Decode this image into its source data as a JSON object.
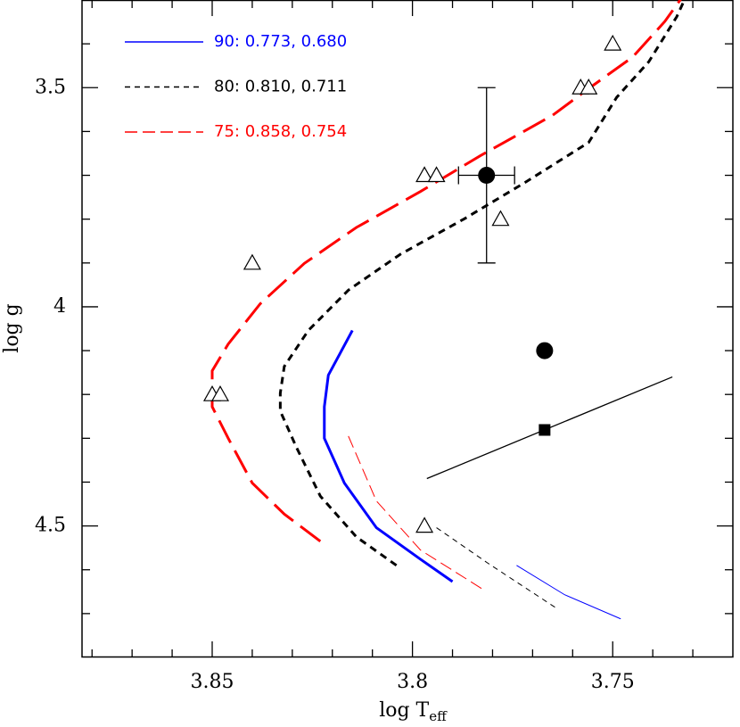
{
  "chart_data": {
    "type": "line",
    "xlabel": "log T",
    "xlabel_subscript": "eff",
    "ylabel": "log g",
    "xlim": [
      3.8825,
      3.72
    ],
    "ylim": [
      3.3,
      4.8
    ],
    "xticks": [
      3.85,
      3.8,
      3.75
    ],
    "yticks": [
      3.5,
      4,
      4.5
    ],
    "xminorticks": [
      3.88,
      3.87,
      3.86,
      3.84,
      3.83,
      3.82,
      3.81,
      3.79,
      3.78,
      3.77,
      3.76,
      3.74,
      3.73
    ],
    "yminorticks": [
      3.3,
      3.4,
      3.6,
      3.7,
      3.8,
      3.9,
      4.1,
      4.2,
      4.3,
      4.4,
      4.6,
      4.7
    ],
    "series": [
      {
        "name": "90: 0.773, 0.680",
        "color": "#0000ff",
        "kind": "line",
        "style": "solid",
        "width": 3,
        "x": [
          3.79,
          3.798,
          3.809,
          3.817,
          3.822,
          3.822,
          3.821,
          3.818,
          3.815
        ],
        "values": [
          4.627,
          4.576,
          4.504,
          4.402,
          4.3,
          4.228,
          4.156,
          4.105,
          4.054
        ]
      },
      {
        "name": "80: 0.810, 0.711",
        "color": "#000000",
        "kind": "line",
        "style": "short-dash",
        "width": 3,
        "x": [
          3.804,
          3.814,
          3.823,
          3.829,
          3.833,
          3.833,
          3.832,
          3.826,
          3.816,
          3.803,
          3.787,
          3.772,
          3.756,
          3.749,
          3.741,
          3.734,
          3.732
        ],
        "values": [
          4.59,
          4.525,
          4.432,
          4.32,
          4.238,
          4.197,
          4.136,
          4.054,
          3.962,
          3.88,
          3.799,
          3.717,
          3.625,
          3.522,
          3.441,
          3.338,
          3.298
        ]
      },
      {
        "name": "75: 0.858, 0.754",
        "color": "#ff0000",
        "kind": "line",
        "style": "long-dash",
        "width": 3,
        "x": [
          3.823,
          3.832,
          3.84,
          3.846,
          3.85,
          3.85,
          3.85,
          3.846,
          3.838,
          3.827,
          3.814,
          3.798,
          3.783,
          3.765,
          3.756,
          3.745,
          3.737,
          3.733
        ],
        "values": [
          4.535,
          4.473,
          4.402,
          4.3,
          4.228,
          4.197,
          4.146,
          4.085,
          3.993,
          3.901,
          3.819,
          3.737,
          3.655,
          3.563,
          3.502,
          3.43,
          3.349,
          3.298
        ]
      },
      {
        "color": "#ff0000",
        "kind": "line",
        "style": "long-dash",
        "width": 1,
        "x": [
          3.816,
          3.809,
          3.798,
          3.782
        ],
        "values": [
          4.295,
          4.443,
          4.555,
          4.647
        ]
      },
      {
        "color": "#000000",
        "kind": "line",
        "style": "short-dash",
        "width": 1,
        "x": [
          3.794,
          3.781,
          3.764
        ],
        "values": [
          4.504,
          4.586,
          4.688
        ]
      },
      {
        "color": "#0000ff",
        "kind": "line",
        "style": "solid",
        "width": 1,
        "x": [
          3.774,
          3.762,
          3.748
        ],
        "values": [
          4.59,
          4.657,
          4.712
        ]
      },
      {
        "color": "#000000",
        "kind": "line",
        "style": "solid",
        "width": 1.3,
        "x": [
          3.7964,
          3.7351
        ],
        "values": [
          4.392,
          4.16
        ]
      },
      {
        "color": "#000000",
        "kind": "scatter",
        "marker": "triangle-open",
        "x": [
          3.75,
          3.758,
          3.756,
          3.797,
          3.794,
          3.778,
          3.84,
          3.85,
          3.848,
          3.797
        ],
        "values": [
          3.4,
          3.5,
          3.5,
          3.7,
          3.7,
          3.8,
          3.9,
          4.2,
          4.2,
          4.5
        ]
      },
      {
        "color": "#000000",
        "kind": "scatter",
        "marker": "circle",
        "x": [
          3.7815
        ],
        "values": [
          3.7
        ],
        "xerr": [
          0.007
        ],
        "yerr": [
          0.2
        ]
      },
      {
        "color": "#000000",
        "kind": "scatter",
        "marker": "circle",
        "x": [
          3.767
        ],
        "values": [
          4.1
        ]
      },
      {
        "color": "#000000",
        "kind": "scatter",
        "marker": "square",
        "x": [
          3.767
        ],
        "values": [
          4.281
        ]
      }
    ]
  }
}
